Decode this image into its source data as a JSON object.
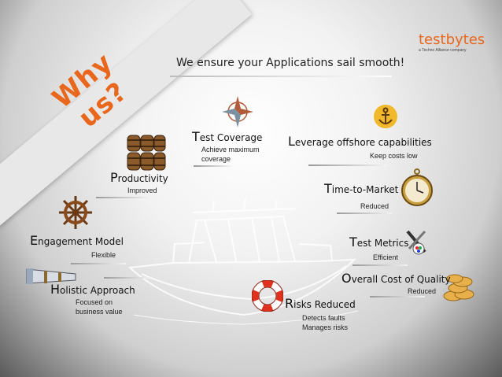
{
  "banner": {
    "text": "Why us?"
  },
  "headline": "We ensure your Applications sail smooth!",
  "logo": {
    "name": "testbytes",
    "tagline": "a Techno Alliance company"
  },
  "colors": {
    "accent": "#e8671c",
    "background": "#d9d9d9"
  },
  "items": {
    "test_coverage": {
      "title_big": "T",
      "title_rest": "est Coverage",
      "desc": "Achieve maximum coverage",
      "icon": "compass-rose-icon"
    },
    "offshore": {
      "title_big": "L",
      "title_rest": "everage offshore capabilities",
      "desc": "Keep costs low",
      "icon": "anchor-icon"
    },
    "productivity": {
      "title_big": "P",
      "title_rest": "roductivity",
      "desc": "Improved",
      "icon": "barrels-icon"
    },
    "time_to_market": {
      "title_big": "T",
      "title_rest": "ime-to-Market",
      "desc": "Reduced",
      "icon": "pocket-watch-icon"
    },
    "engagement": {
      "title_big": "E",
      "title_rest": "ngagement Model",
      "desc": "Flexible",
      "icon": "ship-wheel-icon"
    },
    "test_metrics": {
      "title_big": "T",
      "title_rest": "est Metrics",
      "desc": "Efficient",
      "icon": "metrics-icon"
    },
    "holistic": {
      "title_big": "H",
      "title_rest": "olistic Approach",
      "desc": "Focused on business value",
      "icon": "telescope-icon"
    },
    "quality_cost": {
      "title_big": "O",
      "title_rest": "verall Cost of Quality",
      "desc": "Reduced",
      "icon": "coins-icon"
    },
    "risks": {
      "title_big": "R",
      "title_rest": "isks Reduced",
      "desc_1": "Detects  faults",
      "desc_2": "Manages risks",
      "icon": "lifebuoy-icon"
    }
  }
}
